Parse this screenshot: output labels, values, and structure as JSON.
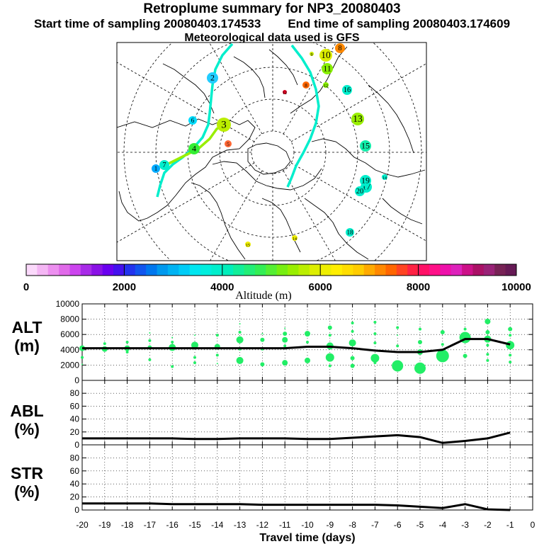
{
  "header": {
    "title": "Retroplume summary for NP3_20080403",
    "start_label": "Start time of sampling 20080403.174533",
    "end_label": "End time of sampling 20080403.174609",
    "met_label": "Meteorological data used is GFS"
  },
  "map": {
    "clusters": [
      {
        "n": "1",
        "c": "#00aaff"
      },
      {
        "n": "2",
        "c": "#22ccff"
      },
      {
        "n": "3",
        "c": "#bbee00"
      },
      {
        "n": "4",
        "c": "#33ee33"
      },
      {
        "n": "5",
        "c": "#ff6633"
      },
      {
        "n": "6",
        "c": "#00ddff"
      },
      {
        "n": "7",
        "c": "#00eecc"
      },
      {
        "n": "8",
        "c": "#ff8800"
      },
      {
        "n": "9",
        "c": "#ccee00"
      },
      {
        "n": "10",
        "c": "#ddee00"
      },
      {
        "n": "11",
        "c": "#88ee00"
      },
      {
        "n": "12",
        "c": "#88ee00"
      },
      {
        "n": "13",
        "c": "#99ee00"
      },
      {
        "n": "14",
        "c": "#00eecc"
      },
      {
        "n": "15",
        "c": "#11eeaa"
      },
      {
        "n": "16",
        "c": "#00eecc"
      },
      {
        "n": "17",
        "c": "#00eecc"
      },
      {
        "n": "18",
        "c": "#00eecc"
      },
      {
        "n": "19",
        "c": "#00eecc"
      },
      {
        "n": "20",
        "c": "#00eecc"
      },
      {
        "n": "8",
        "c": "#ff6600"
      },
      {
        "n": "14",
        "c": "#eeee00"
      },
      {
        "n": "15",
        "c": "#eeee00"
      },
      {
        "n": "12",
        "c": "#dd0022"
      }
    ]
  },
  "colorbar": {
    "label": "Altitude (m)",
    "min": 0,
    "max": 10000,
    "tick_labels": [
      "0",
      "2000",
      "4000",
      "6000",
      "8000",
      "10000"
    ],
    "colors": [
      "#fbd9fb",
      "#f4b6f4",
      "#ec8fef",
      "#e06ae9",
      "#cc44ee",
      "#a82be8",
      "#8a12e6",
      "#6a00f0",
      "#4411ee",
      "#2233ee",
      "#1155ee",
      "#0077ee",
      "#0099ee",
      "#00b3f2",
      "#00ccf6",
      "#00e6f0",
      "#00eedd",
      "#00eecc",
      "#00eebb",
      "#11ee99",
      "#22ee77",
      "#33ee55",
      "#55ee33",
      "#77ee11",
      "#99ee00",
      "#bbee00",
      "#ddee00",
      "#eeee00",
      "#ffee00",
      "#ffdd00",
      "#ffcc00",
      "#ffaa00",
      "#ff8800",
      "#ff6600",
      "#ff4422",
      "#ff2244",
      "#ff1166",
      "#ff1188",
      "#ee11aa",
      "#dd22bb",
      "#cc1188",
      "#aa1166",
      "#992277",
      "#772255",
      "#661a55"
    ]
  },
  "chart_data": [
    {
      "type": "scatter",
      "name": "alt_panel",
      "ylabel": "ALT (m)",
      "ylim": [
        0,
        10000
      ],
      "y_ticks": [
        "0",
        "2000",
        "4000",
        "6000",
        "8000",
        "10000"
      ],
      "xlim": [
        -20,
        0
      ],
      "line_x": [
        -20,
        -19,
        -18,
        -17,
        -16,
        -15,
        -14,
        -13,
        -12,
        -11,
        -10,
        -9,
        -8,
        -7,
        -6,
        -5,
        -4,
        -3,
        -2,
        -1
      ],
      "line_y": [
        4200,
        4200,
        4200,
        4200,
        4200,
        4200,
        4200,
        4200,
        4200,
        4200,
        4400,
        4400,
        4200,
        3900,
        3700,
        3700,
        4000,
        5400,
        5400,
        4700
      ],
      "points": [
        {
          "x": -20,
          "y": 4200,
          "s": 4
        },
        {
          "x": -20,
          "y": 3000,
          "s": 2
        },
        {
          "x": -20,
          "y": 2100,
          "s": 1
        },
        {
          "x": -19,
          "y": 4100,
          "s": 4
        },
        {
          "x": -19,
          "y": 4800,
          "s": 2
        },
        {
          "x": -18,
          "y": 4200,
          "s": 4
        },
        {
          "x": -18,
          "y": 5000,
          "s": 2
        },
        {
          "x": -18,
          "y": 3700,
          "s": 2
        },
        {
          "x": -17,
          "y": 4300,
          "s": 3
        },
        {
          "x": -17,
          "y": 6200,
          "s": 1
        },
        {
          "x": -17,
          "y": 5200,
          "s": 2
        },
        {
          "x": -17,
          "y": 2700,
          "s": 2
        },
        {
          "x": -16,
          "y": 4300,
          "s": 5
        },
        {
          "x": -16,
          "y": 5000,
          "s": 2
        },
        {
          "x": -16,
          "y": 1800,
          "s": 2
        },
        {
          "x": -16,
          "y": 5600,
          "s": 1
        },
        {
          "x": -15,
          "y": 4600,
          "s": 5
        },
        {
          "x": -15,
          "y": 3000,
          "s": 2
        },
        {
          "x": -15,
          "y": 2300,
          "s": 2
        },
        {
          "x": -15,
          "y": 5900,
          "s": 1
        },
        {
          "x": -14,
          "y": 4400,
          "s": 4
        },
        {
          "x": -14,
          "y": 5900,
          "s": 2
        },
        {
          "x": -14,
          "y": 3300,
          "s": 2
        },
        {
          "x": -14,
          "y": 2200,
          "s": 1
        },
        {
          "x": -13,
          "y": 5300,
          "s": 5
        },
        {
          "x": -13,
          "y": 2600,
          "s": 5
        },
        {
          "x": -13,
          "y": 6300,
          "s": 2
        },
        {
          "x": -13,
          "y": 4100,
          "s": 2
        },
        {
          "x": -13,
          "y": 7400,
          "s": 1
        },
        {
          "x": -12,
          "y": 5300,
          "s": 3
        },
        {
          "x": -12,
          "y": 2100,
          "s": 3
        },
        {
          "x": -12,
          "y": 4100,
          "s": 2
        },
        {
          "x": -12,
          "y": 6100,
          "s": 1
        },
        {
          "x": -11,
          "y": 5300,
          "s": 4
        },
        {
          "x": -11,
          "y": 2300,
          "s": 4
        },
        {
          "x": -11,
          "y": 6100,
          "s": 3
        },
        {
          "x": -11,
          "y": 4500,
          "s": 2
        },
        {
          "x": -11,
          "y": 6800,
          "s": 1
        },
        {
          "x": -10,
          "y": 6100,
          "s": 4
        },
        {
          "x": -10,
          "y": 2600,
          "s": 4
        },
        {
          "x": -10,
          "y": 5000,
          "s": 2
        },
        {
          "x": -9,
          "y": 6900,
          "s": 3
        },
        {
          "x": -9,
          "y": 3000,
          "s": 6
        },
        {
          "x": -9,
          "y": 4500,
          "s": 5
        },
        {
          "x": -9,
          "y": 5900,
          "s": 2
        },
        {
          "x": -9,
          "y": 1900,
          "s": 2
        },
        {
          "x": -8,
          "y": 4900,
          "s": 5
        },
        {
          "x": -8,
          "y": 7500,
          "s": 2
        },
        {
          "x": -8,
          "y": 6400,
          "s": 2
        },
        {
          "x": -8,
          "y": 2900,
          "s": 3
        },
        {
          "x": -8,
          "y": 1900,
          "s": 3
        },
        {
          "x": -7,
          "y": 2900,
          "s": 6
        },
        {
          "x": -7,
          "y": 7600,
          "s": 2
        },
        {
          "x": -7,
          "y": 6100,
          "s": 2
        },
        {
          "x": -7,
          "y": 4900,
          "s": 2
        },
        {
          "x": -7,
          "y": 2300,
          "s": 2
        },
        {
          "x": -6,
          "y": 1900,
          "s": 8
        },
        {
          "x": -6,
          "y": 6900,
          "s": 2
        },
        {
          "x": -6,
          "y": 5900,
          "s": 1
        },
        {
          "x": -6,
          "y": 4500,
          "s": 2
        },
        {
          "x": -5,
          "y": 1600,
          "s": 8
        },
        {
          "x": -5,
          "y": 6700,
          "s": 2
        },
        {
          "x": -5,
          "y": 5000,
          "s": 3
        },
        {
          "x": -5,
          "y": 3700,
          "s": 4
        },
        {
          "x": -4,
          "y": 3200,
          "s": 9
        },
        {
          "x": -4,
          "y": 6300,
          "s": 3
        },
        {
          "x": -4,
          "y": 4700,
          "s": 2
        },
        {
          "x": -3,
          "y": 5600,
          "s": 8
        },
        {
          "x": -3,
          "y": 6700,
          "s": 2
        },
        {
          "x": -3,
          "y": 3200,
          "s": 3
        },
        {
          "x": -2,
          "y": 7700,
          "s": 4
        },
        {
          "x": -2,
          "y": 5400,
          "s": 5
        },
        {
          "x": -2,
          "y": 6300,
          "s": 3
        },
        {
          "x": -2,
          "y": 4600,
          "s": 2
        },
        {
          "x": -2,
          "y": 3400,
          "s": 2
        },
        {
          "x": -2,
          "y": 2600,
          "s": 2
        },
        {
          "x": -1,
          "y": 4600,
          "s": 6
        },
        {
          "x": -1,
          "y": 6700,
          "s": 3
        },
        {
          "x": -1,
          "y": 5900,
          "s": 2
        },
        {
          "x": -1,
          "y": 3300,
          "s": 2
        },
        {
          "x": -1,
          "y": 2400,
          "s": 2
        }
      ]
    },
    {
      "type": "line",
      "name": "abl_panel",
      "ylabel": "ABL (%)",
      "ylim": [
        0,
        100
      ],
      "y_ticks": [
        "0",
        "20",
        "40",
        "60",
        "80"
      ],
      "x": [
        -20,
        -19,
        -18,
        -17,
        -16,
        -15,
        -14,
        -13,
        -12,
        -11,
        -10,
        -9,
        -8,
        -7,
        -6,
        -5,
        -4,
        -3,
        -2,
        -1
      ],
      "values": [
        10,
        10,
        10,
        10,
        10,
        9,
        9,
        10,
        10,
        10,
        9,
        9,
        11,
        13,
        15,
        12,
        3,
        6,
        10,
        19
      ]
    },
    {
      "type": "line",
      "name": "str_panel",
      "ylabel": "STR (%)",
      "ylim": [
        0,
        100
      ],
      "y_ticks": [
        "0",
        "20",
        "40",
        "60",
        "80"
      ],
      "x": [
        -20,
        -19,
        -18,
        -17,
        -16,
        -15,
        -14,
        -13,
        -12,
        -11,
        -10,
        -9,
        -8,
        -7,
        -6,
        -5,
        -4,
        -3,
        -2,
        -1
      ],
      "values": [
        10,
        10,
        10,
        10,
        9,
        9,
        9,
        9,
        8,
        8,
        8,
        8,
        8,
        8,
        7,
        5,
        3,
        9,
        1,
        0
      ],
      "xlabel": "Travel time (days)",
      "x_ticks": [
        "-20",
        "-19",
        "-18",
        "-17",
        "-16",
        "-15",
        "-14",
        "-13",
        "-12",
        "-11",
        "-10",
        "-9",
        "-8",
        "-7",
        "-6",
        "-5",
        "-4",
        "-3",
        "-2",
        "-1",
        "0"
      ]
    }
  ]
}
